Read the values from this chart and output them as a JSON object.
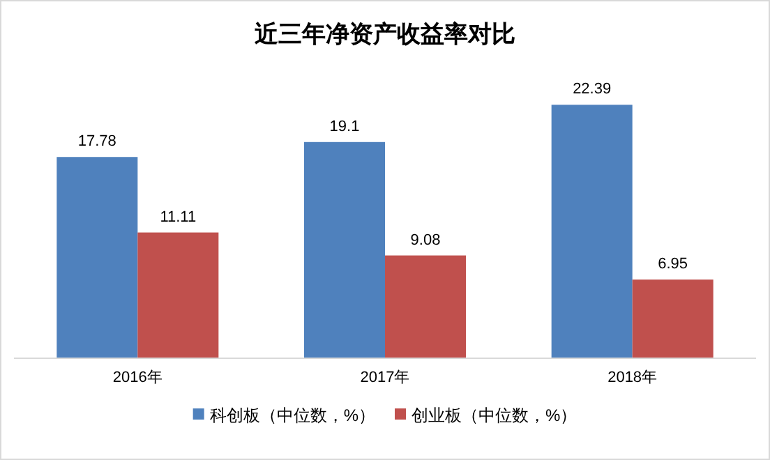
{
  "chart_data": {
    "type": "bar",
    "title": "近三年净资产收益率对比",
    "categories": [
      "2016年",
      "2017年",
      "2018年"
    ],
    "series": [
      {
        "name": "科创板（中位数，%）",
        "color": "#4f81bd",
        "values": [
          17.78,
          19.1,
          22.39
        ]
      },
      {
        "name": "创业板（中位数，%）",
        "color": "#c0504d",
        "values": [
          11.11,
          9.08,
          6.95
        ]
      }
    ],
    "data_labels": true,
    "legend": "bottom"
  }
}
